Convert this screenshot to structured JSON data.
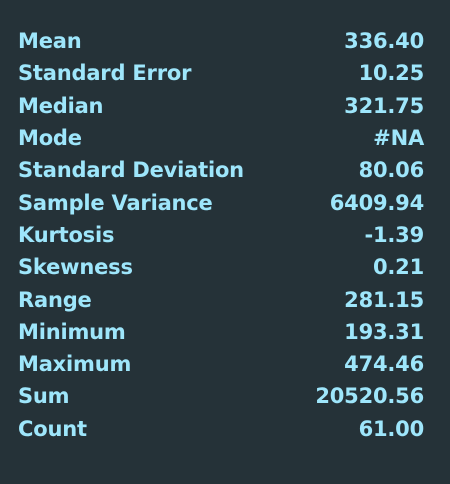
{
  "stats": [
    {
      "label": "Mean",
      "value": "336.40"
    },
    {
      "label": "Standard Error",
      "value": "10.25"
    },
    {
      "label": "Median",
      "value": "321.75"
    },
    {
      "label": "Mode",
      "value": "#NA"
    },
    {
      "label": "Standard Deviation",
      "value": "80.06"
    },
    {
      "label": "Sample Variance",
      "value": "6409.94"
    },
    {
      "label": "Kurtosis",
      "value": "-1.39"
    },
    {
      "label": "Skewness",
      "value": "0.21"
    },
    {
      "label": "Range",
      "value": "281.15"
    },
    {
      "label": "Minimum",
      "value": "193.31"
    },
    {
      "label": "Maximum",
      "value": "474.46"
    },
    {
      "label": "Sum",
      "value": "20520.56"
    },
    {
      "label": "Count",
      "value": "61.00"
    }
  ],
  "colors": {
    "background": "#253238",
    "text": "#9ee6fb"
  }
}
